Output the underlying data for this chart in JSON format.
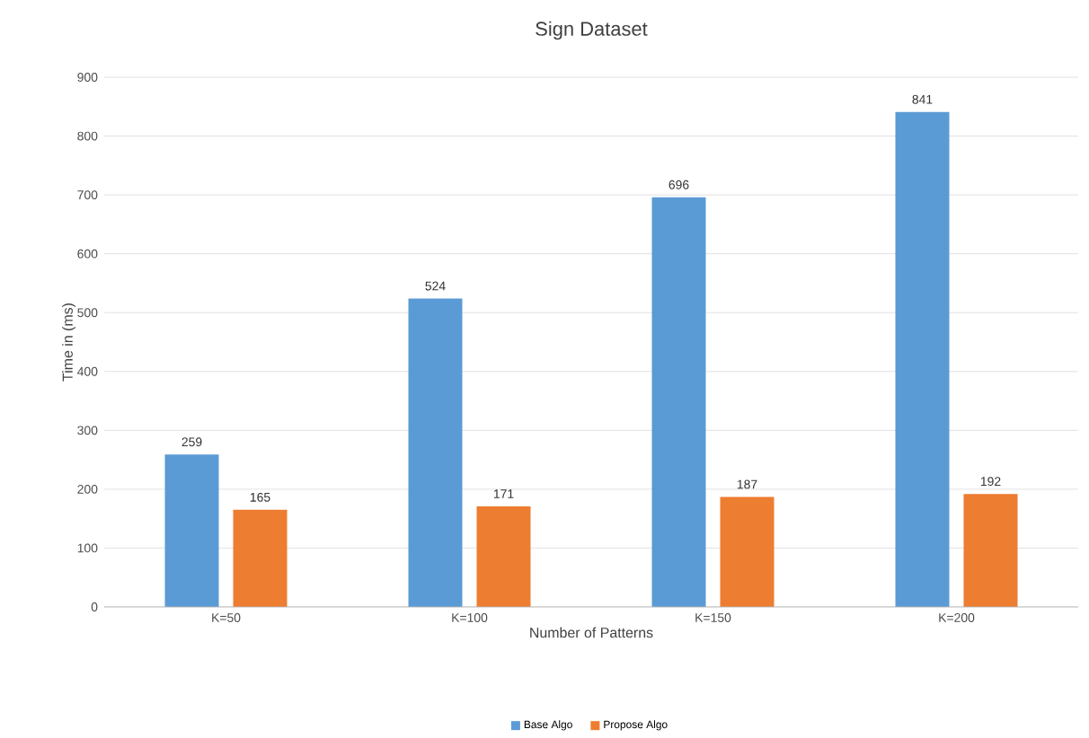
{
  "chart_data": {
    "type": "bar",
    "title": "Sign Dataset",
    "xlabel": "Number of Patterns",
    "ylabel": "Time in (ms)",
    "categories": [
      "K=50",
      "K=100",
      "K=150",
      "K=200"
    ],
    "series": [
      {
        "name": "Base Algo",
        "color": "#5b9bd5",
        "values": [
          259,
          524,
          696,
          841
        ]
      },
      {
        "name": "Propose Algo",
        "color": "#ed7d31",
        "values": [
          165,
          171,
          187,
          192
        ]
      }
    ],
    "ylim": [
      0,
      900
    ],
    "yticks": [
      0,
      100,
      200,
      300,
      400,
      500,
      600,
      700,
      800,
      900
    ],
    "grid": "y",
    "legend": "bottom",
    "data_labels": true
  }
}
